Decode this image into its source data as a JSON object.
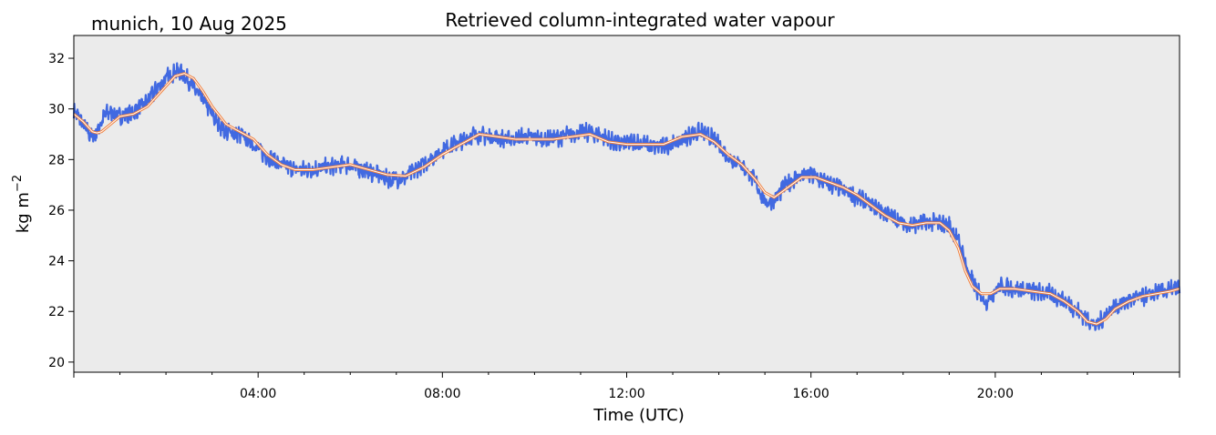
{
  "chart_data": {
    "type": "line",
    "title": "Retrieved column-integrated water vapour",
    "subtitle": "munich, 10 Aug 2025",
    "xlabel": "Time (UTC)",
    "ylabel": "kg m",
    "ylabel_superscript": "−2",
    "xlim_hours": [
      0,
      24
    ],
    "ylim": [
      19.6,
      32.9
    ],
    "x_ticks": [
      {
        "hour": 4,
        "label": "04:00"
      },
      {
        "hour": 8,
        "label": "08:00"
      },
      {
        "hour": 12,
        "label": "12:00"
      },
      {
        "hour": 16,
        "label": "16:00"
      },
      {
        "hour": 20,
        "label": "20:00"
      }
    ],
    "y_ticks": [
      20,
      22,
      24,
      26,
      28,
      30,
      32
    ],
    "colors": {
      "background": "#ebebeb",
      "raw_series": "#4169e1",
      "smooth_series": "#f07f3c",
      "smooth_core": "#ffffff"
    },
    "series": [
      {
        "name": "raw",
        "x_hours": [
          0.0,
          0.1,
          0.2,
          0.3,
          0.4,
          0.5,
          0.6,
          0.7,
          0.8,
          1.0,
          1.2,
          1.4,
          1.6,
          1.8,
          2.0,
          2.2,
          2.35,
          2.5,
          2.7,
          2.9,
          3.1,
          3.3,
          3.6,
          3.9,
          4.2,
          4.5,
          4.8,
          5.1,
          5.5,
          5.9,
          6.3,
          6.6,
          6.9,
          7.2,
          7.5,
          7.8,
          8.1,
          8.4,
          8.7,
          9.0,
          9.4,
          9.8,
          10.2,
          10.6,
          11.0,
          11.4,
          11.8,
          12.2,
          12.6,
          13.0,
          13.3,
          13.6,
          13.9,
          14.2,
          14.5,
          14.8,
          15.0,
          15.2,
          15.4,
          15.7,
          16.0,
          16.3,
          16.6,
          16.9,
          17.2,
          17.5,
          17.8,
          18.1,
          18.4,
          18.7,
          19.0,
          19.2,
          19.4,
          19.6,
          19.8,
          20.1,
          20.4,
          20.8,
          21.2,
          21.6,
          22.0,
          22.2,
          22.4,
          22.7,
          23.0,
          23.3,
          23.6,
          24.0
        ],
        "values": [
          29.9,
          29.7,
          29.4,
          29.1,
          28.9,
          29.1,
          29.5,
          29.8,
          29.9,
          29.7,
          29.8,
          30.0,
          30.3,
          30.8,
          31.2,
          31.5,
          31.4,
          31.1,
          30.6,
          30.1,
          29.5,
          29.1,
          29.0,
          28.6,
          28.1,
          27.8,
          27.6,
          27.6,
          27.7,
          27.8,
          27.6,
          27.4,
          27.2,
          27.3,
          27.7,
          28.1,
          28.5,
          28.7,
          29.0,
          28.9,
          28.8,
          28.9,
          28.8,
          28.9,
          29.1,
          29.0,
          28.6,
          28.7,
          28.5,
          28.6,
          28.9,
          29.1,
          28.8,
          28.1,
          27.8,
          27.1,
          26.3,
          26.4,
          26.9,
          27.3,
          27.4,
          27.1,
          26.9,
          26.6,
          26.3,
          26.0,
          25.7,
          25.4,
          25.5,
          25.5,
          25.4,
          24.8,
          23.6,
          22.8,
          22.4,
          23.0,
          22.9,
          22.8,
          22.7,
          22.3,
          21.7,
          21.4,
          21.9,
          22.3,
          22.5,
          22.6,
          22.8,
          22.9
        ]
      },
      {
        "name": "smoothed",
        "x_hours": [
          0.0,
          0.2,
          0.4,
          0.5,
          0.6,
          0.8,
          1.0,
          1.3,
          1.6,
          1.9,
          2.2,
          2.4,
          2.6,
          2.8,
          3.0,
          3.3,
          3.6,
          3.9,
          4.2,
          4.5,
          4.8,
          5.2,
          5.6,
          6.0,
          6.4,
          6.8,
          7.2,
          7.6,
          8.0,
          8.4,
          8.8,
          9.2,
          9.6,
          10.0,
          10.4,
          10.8,
          11.2,
          11.6,
          12.0,
          12.4,
          12.8,
          13.2,
          13.6,
          13.9,
          14.2,
          14.5,
          14.8,
          15.0,
          15.2,
          15.5,
          15.8,
          16.1,
          16.4,
          16.7,
          17.0,
          17.3,
          17.6,
          17.9,
          18.2,
          18.5,
          18.8,
          19.0,
          19.2,
          19.35,
          19.5,
          19.7,
          19.9,
          20.1,
          20.4,
          20.8,
          21.2,
          21.5,
          21.8,
          22.0,
          22.2,
          22.4,
          22.6,
          22.9,
          23.2,
          23.5,
          23.8,
          24.0
        ],
        "values": [
          29.8,
          29.5,
          29.1,
          29.05,
          29.1,
          29.4,
          29.7,
          29.8,
          30.1,
          30.7,
          31.3,
          31.4,
          31.2,
          30.7,
          30.1,
          29.4,
          29.1,
          28.8,
          28.2,
          27.8,
          27.6,
          27.6,
          27.7,
          27.8,
          27.6,
          27.4,
          27.35,
          27.7,
          28.2,
          28.6,
          29.0,
          28.9,
          28.8,
          28.8,
          28.8,
          28.9,
          29.0,
          28.7,
          28.6,
          28.6,
          28.6,
          28.9,
          29.0,
          28.7,
          28.2,
          27.8,
          27.2,
          26.7,
          26.5,
          26.9,
          27.3,
          27.3,
          27.1,
          26.9,
          26.6,
          26.2,
          25.8,
          25.5,
          25.4,
          25.5,
          25.5,
          25.2,
          24.5,
          23.6,
          23.0,
          22.7,
          22.7,
          22.9,
          22.9,
          22.8,
          22.7,
          22.4,
          22.0,
          21.6,
          21.5,
          21.7,
          22.1,
          22.4,
          22.6,
          22.7,
          22.8,
          22.9
        ]
      }
    ]
  }
}
